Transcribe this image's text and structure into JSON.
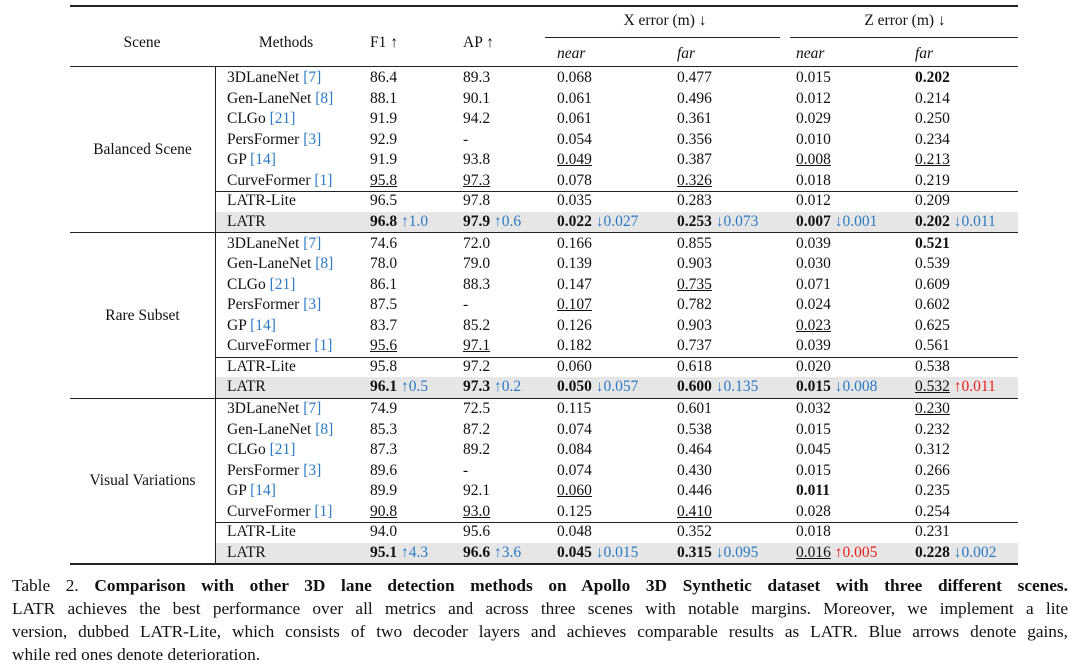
{
  "table": {
    "header": {
      "scene": "Scene",
      "methods": "Methods",
      "f1": "F1 ↑",
      "ap": "AP ↑",
      "x_error": "X error (m) ↓",
      "z_error": "Z error (m) ↓",
      "x_near": "near",
      "x_far": "far",
      "z_near": "near",
      "z_far": "far"
    },
    "groups": [
      {
        "scene": "Balanced Scene",
        "rows": [
          {
            "method": {
              "name": "3DLaneNet",
              "ref": "[7]"
            },
            "cells": [
              "86.4",
              "89.3",
              "0.068",
              "0.477",
              "0.015",
              {
                "text": "0.202",
                "style": "bold"
              }
            ]
          },
          {
            "method": {
              "name": "Gen-LaneNet",
              "ref": "[8]"
            },
            "cells": [
              "88.1",
              "90.1",
              "0.061",
              "0.496",
              "0.012",
              "0.214"
            ]
          },
          {
            "method": {
              "name": "CLGo",
              "ref": "[21]"
            },
            "cells": [
              "91.9",
              "94.2",
              "0.061",
              "0.361",
              "0.029",
              "0.250"
            ]
          },
          {
            "method": {
              "name": "PersFormer",
              "ref": "[3]"
            },
            "cells": [
              "92.9",
              "-",
              "0.054",
              "0.356",
              "0.010",
              "0.234"
            ]
          },
          {
            "method": {
              "name": "GP",
              "ref": "[14]"
            },
            "cells": [
              "91.9",
              "93.8",
              {
                "text": "0.049",
                "style": "underline"
              },
              "0.387",
              {
                "text": "0.008",
                "style": "underline"
              },
              {
                "text": "0.213",
                "style": "underline"
              }
            ]
          },
          {
            "method": {
              "name": "CurveFormer",
              "ref": "[1]"
            },
            "cells": [
              {
                "text": "95.8",
                "style": "underline"
              },
              {
                "text": "97.3",
                "style": "underline"
              },
              "0.078",
              {
                "text": "0.326",
                "style": "underline"
              },
              "0.018",
              "0.219"
            ]
          },
          {
            "method": {
              "name": "LATR-Lite"
            },
            "cells": [
              "96.5",
              "97.8",
              "0.035",
              "0.283",
              "0.012",
              "0.209"
            ]
          },
          {
            "method": {
              "name": "LATR"
            },
            "highlight": true,
            "cells": [
              {
                "text": "96.8",
                "style": "bold",
                "delta": "↑1.0",
                "trend": "gain"
              },
              {
                "text": "97.9",
                "style": "bold",
                "delta": "↑0.6",
                "trend": "gain"
              },
              {
                "text": "0.022",
                "style": "bold",
                "delta": "↓0.027",
                "trend": "gain"
              },
              {
                "text": "0.253",
                "style": "bold",
                "delta": "↓0.073",
                "trend": "gain"
              },
              {
                "text": "0.007",
                "style": "bold",
                "delta": "↓0.001",
                "trend": "gain"
              },
              {
                "text": "0.202",
                "style": "bold",
                "delta": "↓0.011",
                "trend": "gain"
              }
            ]
          }
        ]
      },
      {
        "scene": "Rare Subset",
        "rows": [
          {
            "method": {
              "name": "3DLaneNet",
              "ref": "[7]"
            },
            "cells": [
              "74.6",
              "72.0",
              "0.166",
              "0.855",
              "0.039",
              {
                "text": "0.521",
                "style": "bold"
              }
            ]
          },
          {
            "method": {
              "name": "Gen-LaneNet",
              "ref": "[8]"
            },
            "cells": [
              "78.0",
              "79.0",
              "0.139",
              "0.903",
              "0.030",
              "0.539"
            ]
          },
          {
            "method": {
              "name": "CLGo",
              "ref": "[21]"
            },
            "cells": [
              "86.1",
              "88.3",
              "0.147",
              {
                "text": "0.735",
                "style": "underline"
              },
              "0.071",
              "0.609"
            ]
          },
          {
            "method": {
              "name": "PersFormer",
              "ref": "[3]"
            },
            "cells": [
              "87.5",
              "-",
              {
                "text": "0.107",
                "style": "underline"
              },
              "0.782",
              "0.024",
              "0.602"
            ]
          },
          {
            "method": {
              "name": "GP",
              "ref": "[14]"
            },
            "cells": [
              "83.7",
              "85.2",
              "0.126",
              "0.903",
              {
                "text": "0.023",
                "style": "underline"
              },
              "0.625"
            ]
          },
          {
            "method": {
              "name": "CurveFormer",
              "ref": "[1]"
            },
            "cells": [
              {
                "text": "95.6",
                "style": "underline"
              },
              {
                "text": "97.1",
                "style": "underline"
              },
              "0.182",
              "0.737",
              "0.039",
              "0.561"
            ]
          },
          {
            "method": {
              "name": "LATR-Lite"
            },
            "cells": [
              "95.8",
              "97.2",
              "0.060",
              "0.618",
              "0.020",
              "0.538"
            ]
          },
          {
            "method": {
              "name": "LATR"
            },
            "highlight": true,
            "cells": [
              {
                "text": "96.1",
                "style": "bold",
                "delta": "↑0.5",
                "trend": "gain"
              },
              {
                "text": "97.3",
                "style": "bold",
                "delta": "↑0.2",
                "trend": "gain"
              },
              {
                "text": "0.050",
                "style": "bold",
                "delta": "↓0.057",
                "trend": "gain"
              },
              {
                "text": "0.600",
                "style": "bold",
                "delta": "↓0.135",
                "trend": "gain"
              },
              {
                "text": "0.015",
                "style": "bold",
                "delta": "↓0.008",
                "trend": "gain"
              },
              {
                "text": "0.532",
                "style": "underline",
                "delta": "↑0.011",
                "trend": "loss"
              }
            ]
          }
        ]
      },
      {
        "scene": "Visual Variations",
        "rows": [
          {
            "method": {
              "name": "3DLaneNet",
              "ref": "[7]"
            },
            "cells": [
              "74.9",
              "72.5",
              "0.115",
              "0.601",
              "0.032",
              {
                "text": "0.230",
                "style": "underline"
              }
            ]
          },
          {
            "method": {
              "name": "Gen-LaneNet",
              "ref": "[8]"
            },
            "cells": [
              "85.3",
              "87.2",
              "0.074",
              "0.538",
              "0.015",
              "0.232"
            ]
          },
          {
            "method": {
              "name": "CLGo",
              "ref": "[21]"
            },
            "cells": [
              "87.3",
              "89.2",
              "0.084",
              "0.464",
              "0.045",
              "0.312"
            ]
          },
          {
            "method": {
              "name": "PersFormer",
              "ref": "[3]"
            },
            "cells": [
              "89.6",
              "-",
              "0.074",
              "0.430",
              "0.015",
              "0.266"
            ]
          },
          {
            "method": {
              "name": "GP",
              "ref": "[14]"
            },
            "cells": [
              "89.9",
              "92.1",
              {
                "text": "0.060",
                "style": "underline"
              },
              "0.446",
              {
                "text": "0.011",
                "style": "bold"
              },
              "0.235"
            ]
          },
          {
            "method": {
              "name": "CurveFormer",
              "ref": "[1]"
            },
            "cells": [
              {
                "text": "90.8",
                "style": "underline"
              },
              {
                "text": "93.0",
                "style": "underline"
              },
              "0.125",
              {
                "text": "0.410",
                "style": "underline"
              },
              "0.028",
              "0.254"
            ]
          },
          {
            "method": {
              "name": "LATR-Lite"
            },
            "cells": [
              "94.0",
              "95.6",
              "0.048",
              "0.352",
              "0.018",
              "0.231"
            ]
          },
          {
            "method": {
              "name": "LATR"
            },
            "highlight": true,
            "cells": [
              {
                "text": "95.1",
                "style": "bold",
                "delta": "↑4.3",
                "trend": "gain"
              },
              {
                "text": "96.6",
                "style": "bold",
                "delta": "↑3.6",
                "trend": "gain"
              },
              {
                "text": "0.045",
                "style": "bold",
                "delta": "↓0.015",
                "trend": "gain"
              },
              {
                "text": "0.315",
                "style": "bold",
                "delta": "↓0.095",
                "trend": "gain"
              },
              {
                "text": "0.016",
                "style": "underline",
                "delta": "↑0.005",
                "trend": "loss"
              },
              {
                "text": "0.228",
                "style": "bold",
                "delta": "↓0.002",
                "trend": "gain"
              }
            ]
          }
        ]
      }
    ]
  },
  "caption": {
    "label": "Table 2.",
    "title": "Comparison with other 3D lane detection methods on Apollo 3D Synthetic dataset with three different scenes.",
    "lines": [
      "LATR achieves the best performance over all metrics and across three scenes with notable margins.  Moreover, we implement a lite",
      "version, dubbed LATR-Lite, which consists of two decoder layers and achieves comparable results as LATR. Blue arrows denote gains,",
      "while red ones denote deterioration."
    ]
  }
}
